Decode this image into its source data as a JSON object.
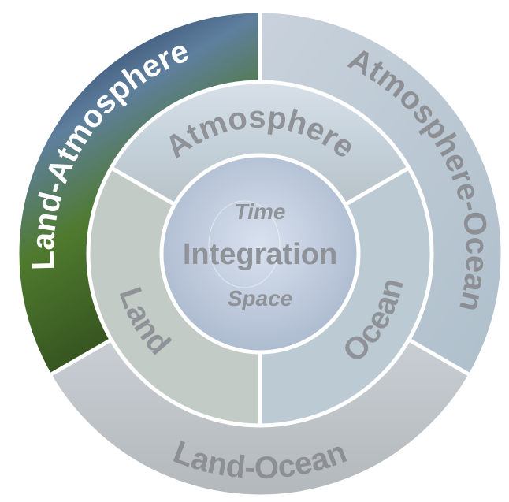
{
  "outer_ring": {
    "segments": [
      {
        "label": "Land-Atmosphere"
      },
      {
        "label": "Atmosphere-Ocean"
      },
      {
        "label": "Land-Ocean"
      }
    ]
  },
  "middle_ring": {
    "segments": [
      {
        "label": "Atmosphere"
      },
      {
        "label": "Land"
      },
      {
        "label": "Ocean"
      }
    ]
  },
  "center": {
    "top": "Time",
    "title": "Integration",
    "bottom": "Space"
  }
}
